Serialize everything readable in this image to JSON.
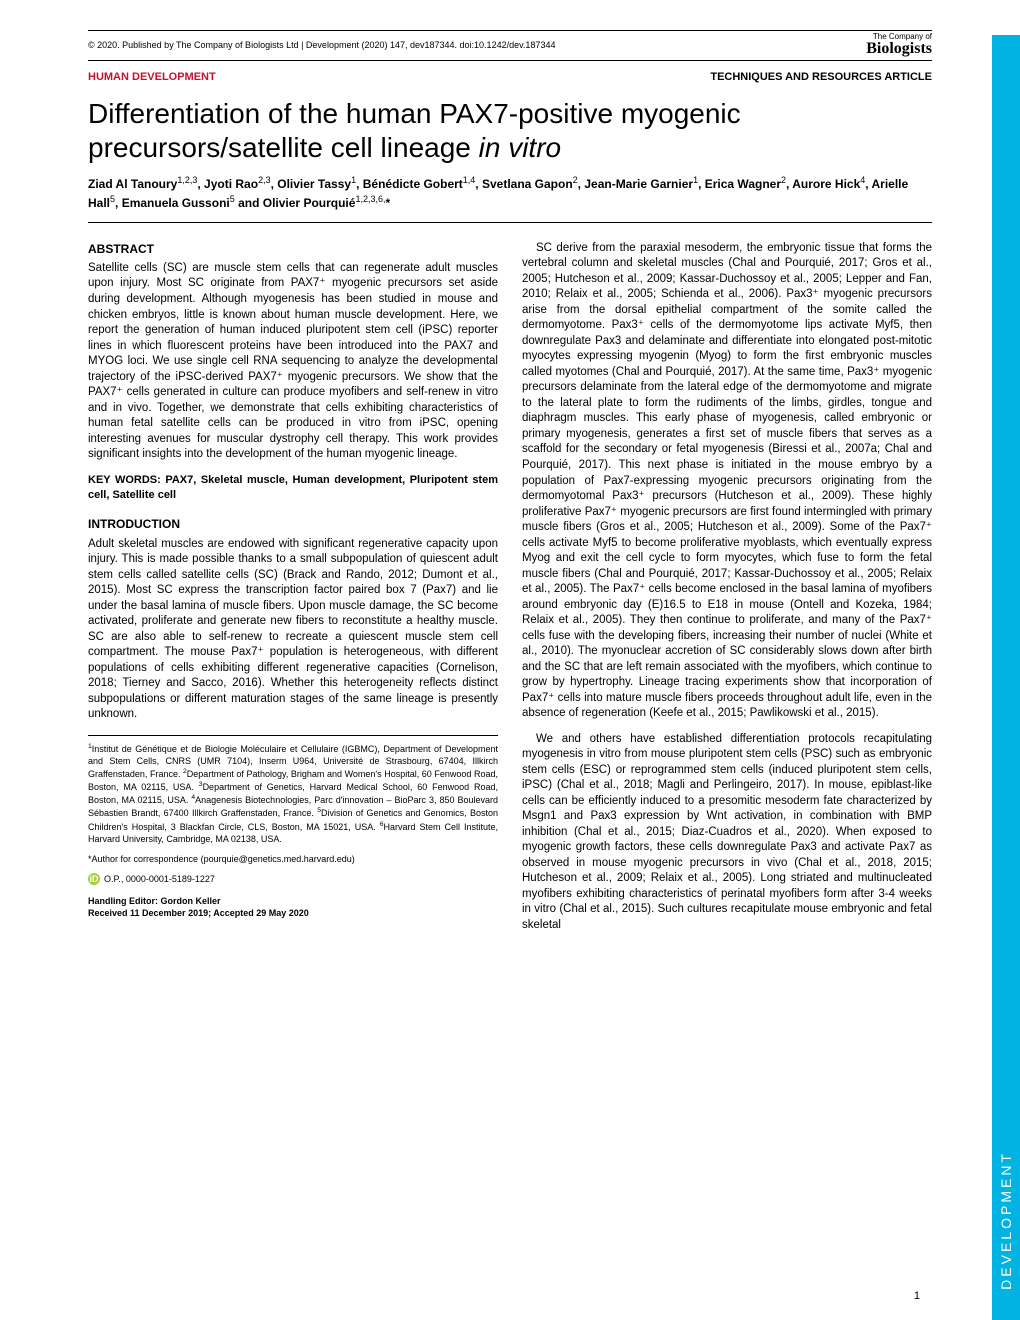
{
  "header": {
    "copyright": "© 2020. Published by The Company of Biologists Ltd | Development (2020) 147, dev187344. doi:10.1242/dev.187344",
    "logo_top": "The Company of",
    "logo_main": "Biologists"
  },
  "section_labels": {
    "left": "HUMAN DEVELOPMENT",
    "right": "TECHNIQUES AND RESOURCES ARTICLE"
  },
  "title_part1": "Differentiation of the human PAX7-positive myogenic precursors/satellite cell lineage ",
  "title_italic": "in vitro",
  "authors_html": "Ziad Al Tanoury<sup>1,2,3</sup>, Jyoti Rao<sup>2,3</sup>, Olivier Tassy<sup>1</sup>, Bénédicte Gobert<sup>1,4</sup>, Svetlana Gapon<sup>2</sup>, Jean-Marie Garnier<sup>1</sup>, Erica Wagner<sup>2</sup>, Aurore Hick<sup>4</sup>, Arielle Hall<sup>5</sup>, Emanuela Gussoni<sup>5</sup> and Olivier Pourquié<sup>1,2,3,6,</sup>*",
  "abstract": {
    "heading": "ABSTRACT",
    "body": "Satellite cells (SC) are muscle stem cells that can regenerate adult muscles upon injury. Most SC originate from PAX7⁺ myogenic precursors set aside during development. Although myogenesis has been studied in mouse and chicken embryos, little is known about human muscle development. Here, we report the generation of human induced pluripotent stem cell (iPSC) reporter lines in which fluorescent proteins have been introduced into the PAX7 and MYOG loci. We use single cell RNA sequencing to analyze the developmental trajectory of the iPSC-derived PAX7⁺ myogenic precursors. We show that the PAX7⁺ cells generated in culture can produce myofibers and self-renew in vitro and in vivo. Together, we demonstrate that cells exhibiting characteristics of human fetal satellite cells can be produced in vitro from iPSC, opening interesting avenues for muscular dystrophy cell therapy. This work provides significant insights into the development of the human myogenic lineage."
  },
  "keywords": "KEY WORDS: PAX7, Skeletal muscle, Human development, Pluripotent stem cell, Satellite cell",
  "intro": {
    "heading": "INTRODUCTION",
    "p1": "Adult skeletal muscles are endowed with significant regenerative capacity upon injury. This is made possible thanks to a small subpopulation of quiescent adult stem cells called satellite cells (SC) (Brack and Rando, 2012; Dumont et al., 2015). Most SC express the transcription factor paired box 7 (Pax7) and lie under the basal lamina of muscle fibers. Upon muscle damage, the SC become activated, proliferate and generate new fibers to reconstitute a healthy muscle. SC are also able to self-renew to recreate a quiescent muscle stem cell compartment. The mouse Pax7⁺ population is heterogeneous, with different populations of cells exhibiting different regenerative capacities (Cornelison, 2018; Tierney and Sacco, 2016). Whether this heterogeneity reflects distinct subpopulations or different maturation stages of the same lineage is presently unknown."
  },
  "right_col": {
    "p1": "SC derive from the paraxial mesoderm, the embryonic tissue that forms the vertebral column and skeletal muscles (Chal and Pourquié, 2017; Gros et al., 2005; Hutcheson et al., 2009; Kassar-Duchossoy et al., 2005; Lepper and Fan, 2010; Relaix et al., 2005; Schienda et al., 2006). Pax3⁺ myogenic precursors arise from the dorsal epithelial compartment of the somite called the dermomyotome. Pax3⁺ cells of the dermomyotome lips activate Myf5, then downregulate Pax3 and delaminate and differentiate into elongated post-mitotic myocytes expressing myogenin (Myog) to form the first embryonic muscles called myotomes (Chal and Pourquié, 2017). At the same time, Pax3⁺ myogenic precursors delaminate from the lateral edge of the dermomyotome and migrate to the lateral plate to form the rudiments of the limbs, girdles, tongue and diaphragm muscles. This early phase of myogenesis, called embryonic or primary myogenesis, generates a first set of muscle fibers that serves as a scaffold for the secondary or fetal myogenesis (Biressi et al., 2007a; Chal and Pourquié, 2017). This next phase is initiated in the mouse embryo by a population of Pax7-expressing myogenic precursors originating from the dermomyotomal Pax3⁺ precursors (Hutcheson et al., 2009). These highly proliferative Pax7⁺ myogenic precursors are first found intermingled with primary muscle fibers (Gros et al., 2005; Hutcheson et al., 2009). Some of the Pax7⁺ cells activate Myf5 to become proliferative myoblasts, which eventually express Myog and exit the cell cycle to form myocytes, which fuse to form the fetal muscle fibers (Chal and Pourquié, 2017; Kassar-Duchossoy et al., 2005; Relaix et al., 2005). The Pax7⁺ cells become enclosed in the basal lamina of myofibers around embryonic day (E)16.5 to E18 in mouse (Ontell and Kozeka, 1984; Relaix et al., 2005). They then continue to proliferate, and many of the Pax7⁺ cells fuse with the developing fibers, increasing their number of nuclei (White et al., 2010). The myonuclear accretion of SC considerably slows down after birth and the SC that are left remain associated with the myofibers, which continue to grow by hypertrophy. Lineage tracing experiments show that incorporation of Pax7⁺ cells into mature muscle fibers proceeds throughout adult life, even in the absence of regeneration (Keefe et al., 2015; Pawlikowski et al., 2015).",
    "p2": "We and others have established differentiation protocols recapitulating myogenesis in vitro from mouse pluripotent stem cells (PSC) such as embryonic stem cells (ESC) or reprogrammed stem cells (induced pluripotent stem cells, iPSC) (Chal et al., 2018; Magli and Perlingeiro, 2017). In mouse, epiblast-like cells can be efficiently induced to a presomitic mesoderm fate characterized by Msgn1 and Pax3 expression by Wnt activation, in combination with BMP inhibition (Chal et al., 2015; Diaz-Cuadros et al., 2020). When exposed to myogenic growth factors, these cells downregulate Pax3 and activate Pax7 as observed in mouse myogenic precursors in vivo (Chal et al., 2018, 2015; Hutcheson et al., 2009; Relaix et al., 2005). Long striated and multinucleated myofibers exhibiting characteristics of perinatal myofibers form after 3-4 weeks in vitro (Chal et al., 2015). Such cultures recapitulate mouse embryonic and fetal skeletal"
  },
  "affiliations_html": "<sup>1</sup>Institut de Génétique et de Biologie Moléculaire et Cellulaire (IGBMC), Department of Development and Stem Cells, CNRS (UMR 7104), Inserm U964, Université de Strasbourg, 67404, Illkirch Graffenstaden, France. <sup>2</sup>Department of Pathology, Brigham and Women's Hospital, 60 Fenwood Road, Boston, MA 02115, USA. <sup>3</sup>Department of Genetics, Harvard Medical School, 60 Fenwood Road, Boston, MA 02115, USA. <sup>4</sup>Anagenesis Biotechnologies, Parc d'innovation – BioParc 3, 850 Boulevard Sébastien Brandt, 67400 Illkirch Graffenstaden, France. <sup>5</sup>Division of Genetics and Genomics, Boston Children's Hospital, 3 Blackfan Circle, CLS, Boston, MA 15021, USA. <sup>6</sup>Harvard Stem Cell Institute, Harvard University, Cambridge, MA 02138, USA.",
  "corr": "*Author for correspondence (pourquie@genetics.med.harvard.edu)",
  "orcid": "O.P., 0000-0001-5189-1227",
  "handling": {
    "editor": "Handling Editor: Gordon Keller",
    "dates": "Received 11 December 2019; Accepted 29 May 2020"
  },
  "side_tab": "DEVELOPMENT",
  "page_num": "1",
  "colors": {
    "accent_red": "#c8102e",
    "side_tab_bg": "#00b3e3",
    "orcid_green": "#a6ce39"
  }
}
